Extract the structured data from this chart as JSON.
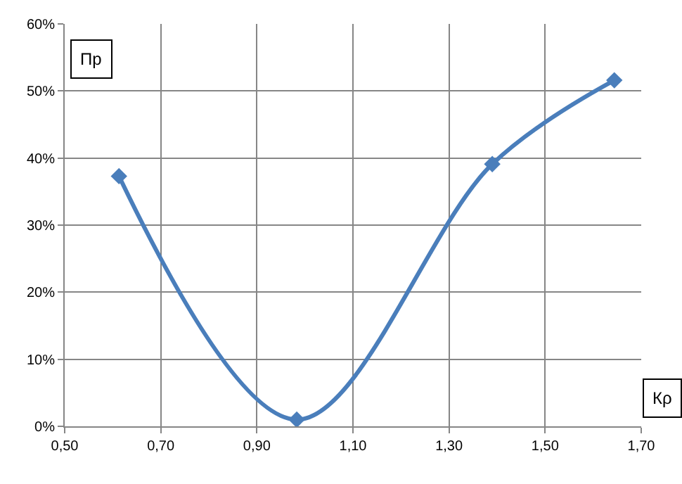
{
  "chart_data": {
    "type": "line",
    "xlabel": "Кρ",
    "ylabel": "Пр",
    "x": [
      0.613,
      0.983,
      1.39,
      1.644
    ],
    "series": [
      {
        "color": "#4a7ebb",
        "values": [
          37.3,
          1.0,
          39.1,
          51.6
        ]
      }
    ],
    "xlim": [
      0.5,
      1.7
    ],
    "xticks": [
      {
        "value": 0.5,
        "label": "0,50"
      },
      {
        "value": 0.7,
        "label": "0,70"
      },
      {
        "value": 0.9,
        "label": "0,90"
      },
      {
        "value": 1.1,
        "label": "1,10"
      },
      {
        "value": 1.3,
        "label": "1,30"
      },
      {
        "value": 1.5,
        "label": "1,50"
      },
      {
        "value": 1.7,
        "label": "1,70"
      }
    ],
    "ylim": [
      0,
      60
    ],
    "yticks": [
      {
        "value": 0,
        "label": "0%"
      },
      {
        "value": 10,
        "label": "10%"
      },
      {
        "value": 20,
        "label": "20%"
      },
      {
        "value": 30,
        "label": "30%"
      },
      {
        "value": 40,
        "label": "40%"
      },
      {
        "value": 50,
        "label": "50%"
      },
      {
        "value": 60,
        "label": "60%"
      }
    ],
    "grid": true,
    "marker": "diamond",
    "line_style": "solid",
    "legend": false
  }
}
